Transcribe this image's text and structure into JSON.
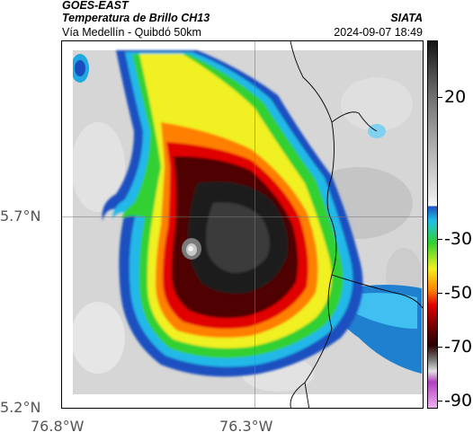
{
  "header": {
    "title_line1": "GOES-EAST",
    "title_line2": "Temperatura de Brillo CH13",
    "organization": "SIATA",
    "subtitle": "Vía Medellín - Quibdó 50km",
    "timestamp": "2024-09-07 18:49"
  },
  "map": {
    "y_ticks": [
      "5.7°N",
      "5.2°N"
    ],
    "x_ticks": [
      "76.8°W",
      "76.3°W"
    ]
  },
  "colorbar": {
    "labels": [
      "20",
      "-30",
      "-50",
      "-70",
      "-90"
    ],
    "colors": {
      "warm_top": "#1a1a1a",
      "gray": "#bdbdbd",
      "blue": "#1050b0",
      "cyan": "#20c0e0",
      "green": "#30d030",
      "yellow": "#f0f020",
      "orange": "#ff8000",
      "red": "#e00000",
      "dark_red": "#500000",
      "purple": "#b040c0"
    }
  }
}
